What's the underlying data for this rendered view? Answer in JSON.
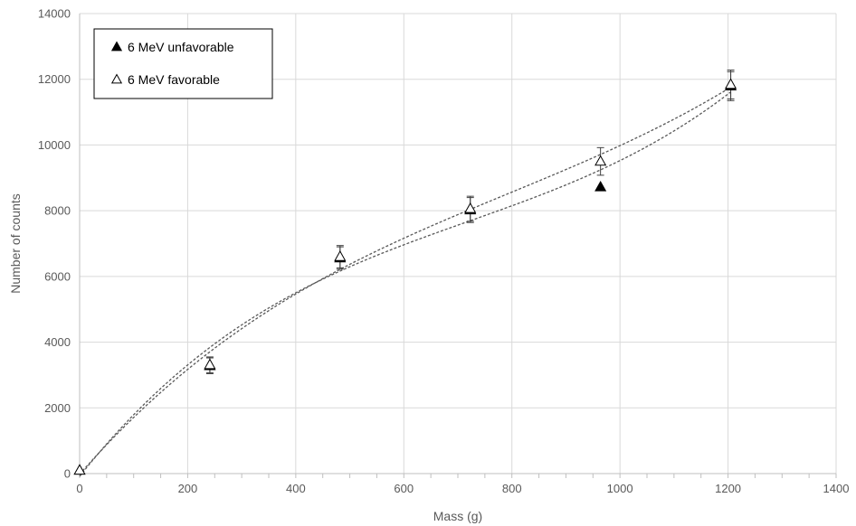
{
  "chart_data": {
    "type": "scatter",
    "xlabel": "Mass (g)",
    "ylabel": "Number of counts",
    "xlim": [
      0,
      1400
    ],
    "ylim": [
      0,
      14000
    ],
    "xticks": [
      0,
      200,
      400,
      600,
      800,
      1000,
      1200,
      1400
    ],
    "yticks": [
      0,
      2000,
      4000,
      6000,
      8000,
      10000,
      12000,
      14000
    ],
    "grid": true,
    "legend_position": "top-left",
    "trendline": "polynomial",
    "series": [
      {
        "name": "6 MeV unfavorable",
        "marker": "filled-triangle",
        "x": [
          0,
          241,
          482,
          723,
          964,
          1205
        ],
        "y": [
          100,
          3280,
          6560,
          8020,
          8720,
          11790
        ],
        "error": [
          0,
          240,
          340,
          380,
          0,
          440
        ]
      },
      {
        "name": "6 MeV favorable",
        "marker": "open-triangle",
        "x": [
          0,
          241,
          482,
          723,
          964,
          1205
        ],
        "y": [
          100,
          3310,
          6600,
          8060,
          9500,
          11840
        ],
        "error": [
          0,
          240,
          340,
          380,
          420,
          440
        ]
      }
    ],
    "colors": {
      "grid": "#d9d9d9",
      "axis": "#bfbfbf",
      "marker": "#000000",
      "trendline": "#595959"
    }
  }
}
